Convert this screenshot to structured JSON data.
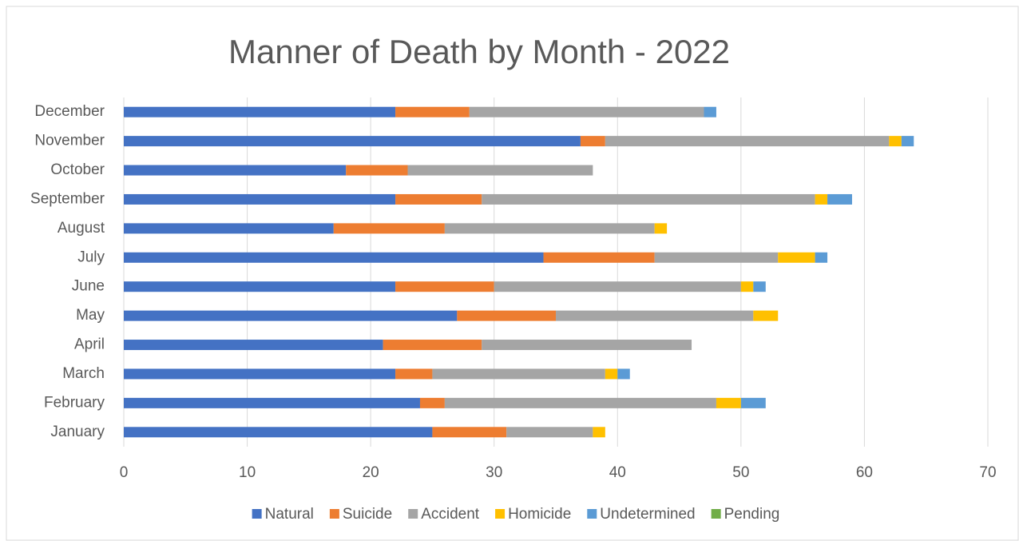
{
  "chart_data": {
    "type": "stacked_barh",
    "title": "Manner of Death by Month - 2022",
    "categories": [
      "January",
      "February",
      "March",
      "April",
      "May",
      "June",
      "July",
      "August",
      "September",
      "October",
      "November",
      "December"
    ],
    "series": [
      {
        "name": "Natural",
        "color": "#4472c4",
        "values": [
          25,
          24,
          22,
          21,
          27,
          22,
          34,
          17,
          22,
          18,
          37,
          22
        ]
      },
      {
        "name": "Suicide",
        "color": "#ed7d31",
        "values": [
          6,
          2,
          3,
          8,
          8,
          8,
          9,
          9,
          7,
          5,
          2,
          6
        ]
      },
      {
        "name": "Accident",
        "color": "#a5a5a5",
        "values": [
          7,
          22,
          14,
          17,
          16,
          20,
          10,
          17,
          27,
          15,
          23,
          19
        ]
      },
      {
        "name": "Homicide",
        "color": "#ffc000",
        "values": [
          1,
          2,
          1,
          0,
          2,
          1,
          3,
          1,
          1,
          0,
          1,
          0
        ]
      },
      {
        "name": "Undetermined",
        "color": "#5b9bd5",
        "values": [
          0,
          2,
          1,
          0,
          0,
          1,
          1,
          0,
          2,
          0,
          1,
          1
        ]
      },
      {
        "name": "Pending",
        "color": "#70ad47",
        "values": [
          0,
          0,
          0,
          0,
          0,
          0,
          0,
          0,
          0,
          0,
          0,
          0
        ]
      }
    ],
    "xlim": [
      0,
      70
    ],
    "xticks": [
      0,
      10,
      20,
      30,
      40,
      50,
      60,
      70
    ],
    "grid": true,
    "legend": "bottom"
  }
}
